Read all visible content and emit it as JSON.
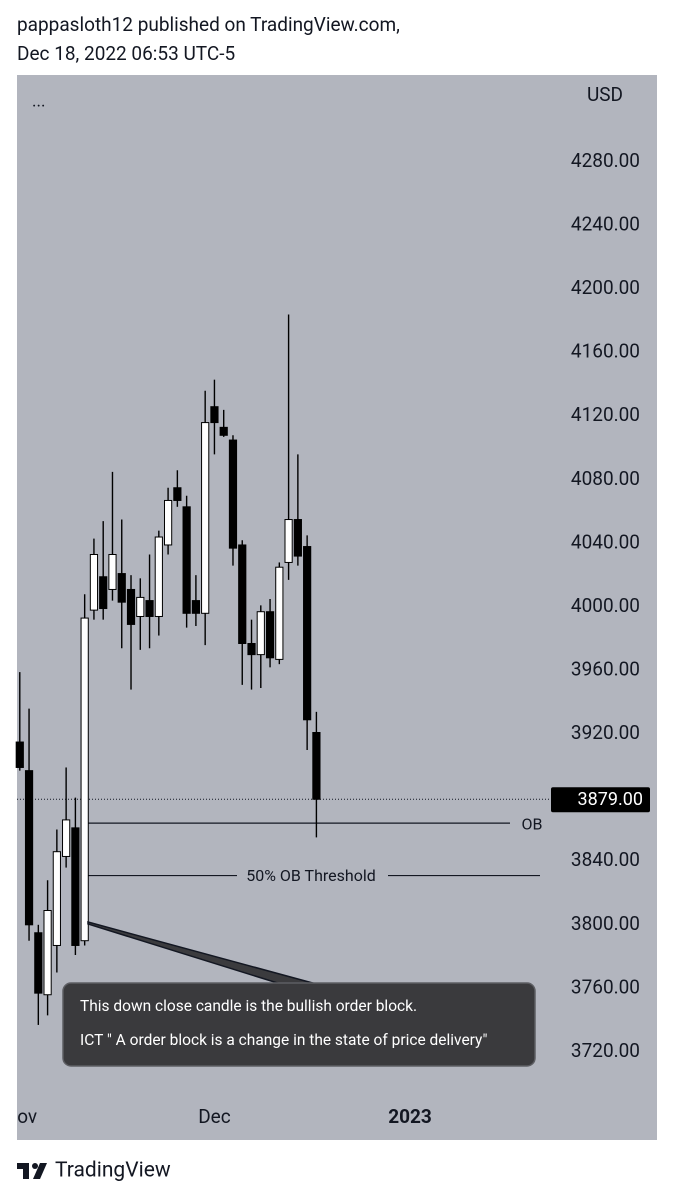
{
  "header": {
    "line1": "pappasloth12 published on TradingView.com,",
    "line2": "Dec 18, 2022 06:53 UTC-5"
  },
  "chart_data": {
    "type": "candlestick",
    "currency": "USD",
    "menu": "...",
    "x": [
      0,
      1,
      2,
      3,
      4,
      5,
      6,
      7,
      8,
      9,
      10,
      11,
      12,
      13,
      14,
      15,
      16,
      17,
      18,
      19,
      20,
      21,
      22,
      23,
      24,
      25,
      26,
      27,
      28,
      29,
      30,
      31,
      32
    ],
    "open": [
      3915,
      3897,
      3795,
      3756,
      3787,
      3843,
      3861,
      3790,
      3998,
      4019,
      4011,
      4021,
      4011,
      3994,
      4004,
      3994,
      4039,
      4075,
      4063,
      4004,
      3996,
      4126,
      4113,
      4105,
      4039,
      3977,
      3970,
      3997,
      3967,
      4028,
      4055,
      4038,
      3921
    ],
    "high": [
      3959,
      3936,
      3800,
      3828,
      3860,
      3899,
      3880,
      4008,
      4043,
      4054,
      4085,
      4055,
      4020,
      4018,
      4033,
      4048,
      4075,
      4086,
      4070,
      4020,
      4136,
      4143,
      4124,
      4108,
      4042,
      3992,
      4001,
      4005,
      4028,
      4184,
      4096,
      4045,
      3934
    ],
    "low": [
      3897,
      3790,
      3737,
      3743,
      3770,
      3836,
      3781,
      3787,
      3992,
      3992,
      4004,
      3974,
      3948,
      3973,
      3974,
      3982,
      4033,
      4063,
      3987,
      3988,
      3976,
      4096,
      4107,
      4026,
      3951,
      3948,
      3949,
      3962,
      3964,
      4017,
      4026,
      3910,
      3855
    ],
    "close": [
      3899,
      3800,
      3757,
      3809,
      3846,
      3866,
      3787,
      3993,
      4033,
      3999,
      4033,
      4003,
      3989,
      4006,
      3994,
      4044,
      4067,
      4067,
      3996,
      3996,
      4116,
      4116,
      4108,
      4037,
      3977,
      3970,
      3997,
      3968,
      4025,
      4055,
      4032,
      3929,
      3879
    ],
    "up_color": "#ffffff",
    "down_color": "#000000",
    "xlim": [
      -0.3,
      57.2
    ],
    "xticks": [
      {
        "value": 0.8,
        "label": "ov"
      },
      {
        "value": 21,
        "label": "Dec"
      },
      {
        "value": 42.1,
        "label": "2023"
      }
    ],
    "ylim": [
      3664.6,
      4334.7
    ],
    "yticks": [
      {
        "value": 4280,
        "label": "4280.00"
      },
      {
        "value": 4240,
        "label": "4240.00"
      },
      {
        "value": 4200,
        "label": "4200.00"
      },
      {
        "value": 4160,
        "label": "4160.00"
      },
      {
        "value": 4120,
        "label": "4120.00"
      },
      {
        "value": 4080,
        "label": "4080.00"
      },
      {
        "value": 4040,
        "label": "4040.00"
      },
      {
        "value": 4000,
        "label": "4000.00"
      },
      {
        "value": 3960,
        "label": "3960.00"
      },
      {
        "value": 3920,
        "label": "3920.00"
      },
      {
        "value": 3880,
        "label": "3880.00"
      },
      {
        "value": 3840,
        "label": "3840.00"
      },
      {
        "value": 3800,
        "label": "3800.00"
      },
      {
        "value": 3760,
        "label": "3760.00"
      },
      {
        "value": 3720,
        "label": "3720.00"
      }
    ],
    "last_price": {
      "value": 3879,
      "label": "3879.00"
    },
    "levels": [
      {
        "value": 3864,
        "label": "OB"
      },
      {
        "value": 3831,
        "label": "50% OB Threshold"
      }
    ],
    "callout": {
      "lines": [
        "This down close candle is the bullish order block.",
        "ICT \" A order block is a change in the state of price delivery\""
      ]
    }
  },
  "footer": {
    "brand": "TradingView"
  }
}
